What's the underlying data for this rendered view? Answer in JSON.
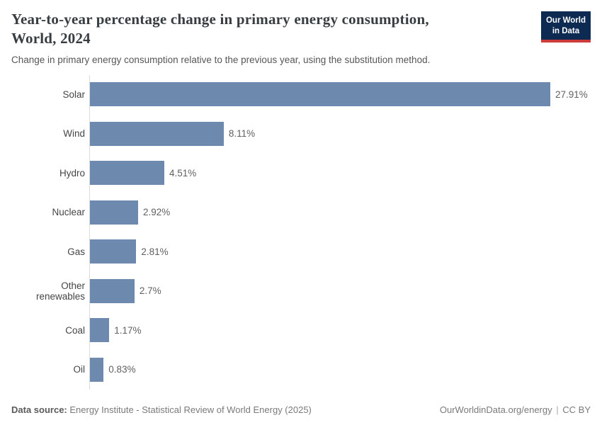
{
  "header": {
    "title_line1": "Year-to-year percentage change in primary energy consumption,",
    "title_line2": "World, 2024",
    "subtitle": "Change in primary energy consumption relative to the previous year, using the substitution method.",
    "logo": {
      "line1": "Our World",
      "line2": "in Data",
      "bg_color": "#0d2a52",
      "accent_color": "#cf3a3a"
    }
  },
  "chart_data": {
    "type": "bar",
    "orientation": "horizontal",
    "title": "Year-to-year percentage change in primary energy consumption, World, 2024",
    "subtitle": "Change in primary energy consumption relative to the previous year, using the substitution method.",
    "categories": [
      "Solar",
      "Wind",
      "Hydro",
      "Nuclear",
      "Gas",
      "Other renewables",
      "Coal",
      "Oil"
    ],
    "values": [
      27.91,
      8.11,
      4.51,
      2.92,
      2.81,
      2.7,
      1.17,
      0.83
    ],
    "value_labels": [
      "27.91%",
      "8.11%",
      "4.51%",
      "2.92%",
      "2.81%",
      "2.7%",
      "1.17%",
      "0.83%"
    ],
    "unit": "%",
    "xlim": [
      0,
      27.91
    ],
    "grid": false,
    "legend": "none",
    "bar_color": "#6d89ae",
    "axis_line_color": "#dcdcdc"
  },
  "footer": {
    "data_source_label": "Data source:",
    "data_source_value": " Energy Institute - Statistical Review of World Energy (2025)",
    "url": "OurWorldinData.org/energy",
    "separator": "|",
    "license": "CC BY"
  }
}
